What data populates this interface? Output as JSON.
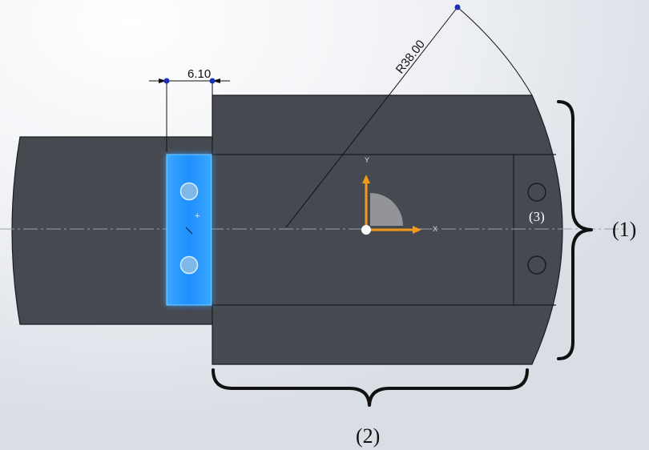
{
  "dimensions": {
    "width_value": "6.10",
    "radius_value": "R38.00"
  },
  "axes": {
    "x_label": "X",
    "y_label": "Y"
  },
  "callouts": {
    "one": "(1)",
    "two": "(2)",
    "three": "(3)"
  },
  "colors": {
    "part": "#474950",
    "part_edge": "#1b1c20",
    "highlight": "#1a8cff",
    "axis_arrow": "#f29a1a",
    "dim_point": "#1a2fb5",
    "background_tint": "#d9dde4"
  }
}
